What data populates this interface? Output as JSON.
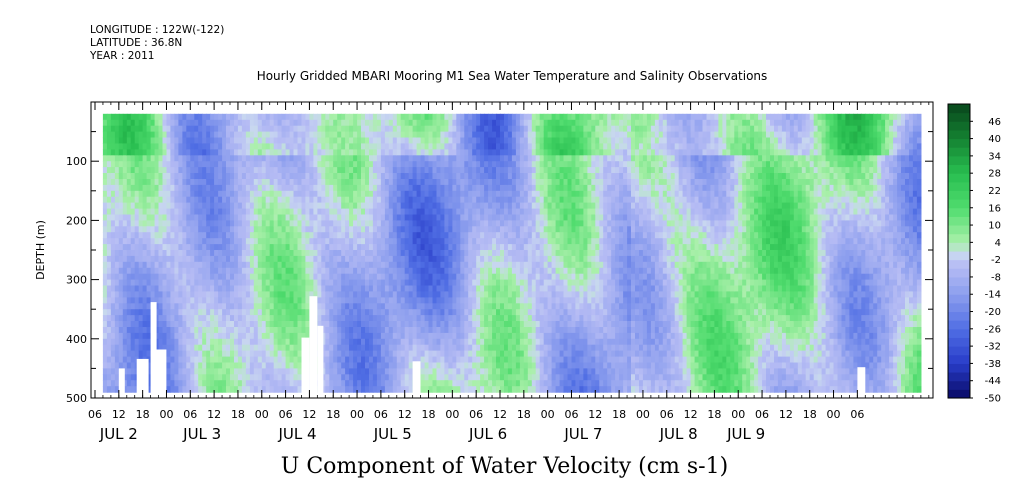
{
  "header": {
    "longitude": "LONGITUDE : 122W(-122)",
    "latitude": "LATITUDE : 36.8N",
    "year": "YEAR : 2011"
  },
  "chart_data": {
    "type": "heatmap",
    "title": "Hourly Gridded MBARI Mooring M1 Sea Water Temperature and Salinity Observations",
    "xlabel": "U Component of Water Velocity (cm s-1)",
    "ylabel": "DEPTH (m)",
    "ylim": [
      500,
      0
    ],
    "yticks": [
      100,
      200,
      300,
      400,
      500
    ],
    "x_hour_ticks": [
      "06",
      "12",
      "18",
      "00",
      "06",
      "12",
      "18",
      "00",
      "06",
      "12",
      "18",
      "00",
      "06",
      "12",
      "18",
      "00",
      "06",
      "12",
      "18",
      "00",
      "06",
      "12",
      "18",
      "00",
      "06",
      "12",
      "18",
      "00",
      "06",
      "12",
      "18",
      "00",
      "06"
    ],
    "x_day_labels": [
      "JUL 2",
      "JUL 3",
      "JUL 4",
      "JUL 5",
      "JUL 6",
      "JUL 7",
      "JUL 8",
      "JUL 9"
    ],
    "colorbar": {
      "levels": [
        46,
        40,
        34,
        28,
        22,
        16,
        10,
        4,
        -2,
        -8,
        -14,
        -20,
        -26,
        -32,
        -38,
        -44,
        -50
      ],
      "range": [
        -50,
        52
      ]
    },
    "data_range_x_hours": [
      8,
      214
    ],
    "data_range_depth": [
      20,
      490
    ]
  },
  "colors": {
    "positive_dark": "#0b4a1a",
    "positive_mid": "#33cc55",
    "positive_light": "#a8f0a8",
    "neutral": "#b8bcf0",
    "negative_mid": "#5f72e0",
    "negative_dark": "#0b0b66"
  }
}
